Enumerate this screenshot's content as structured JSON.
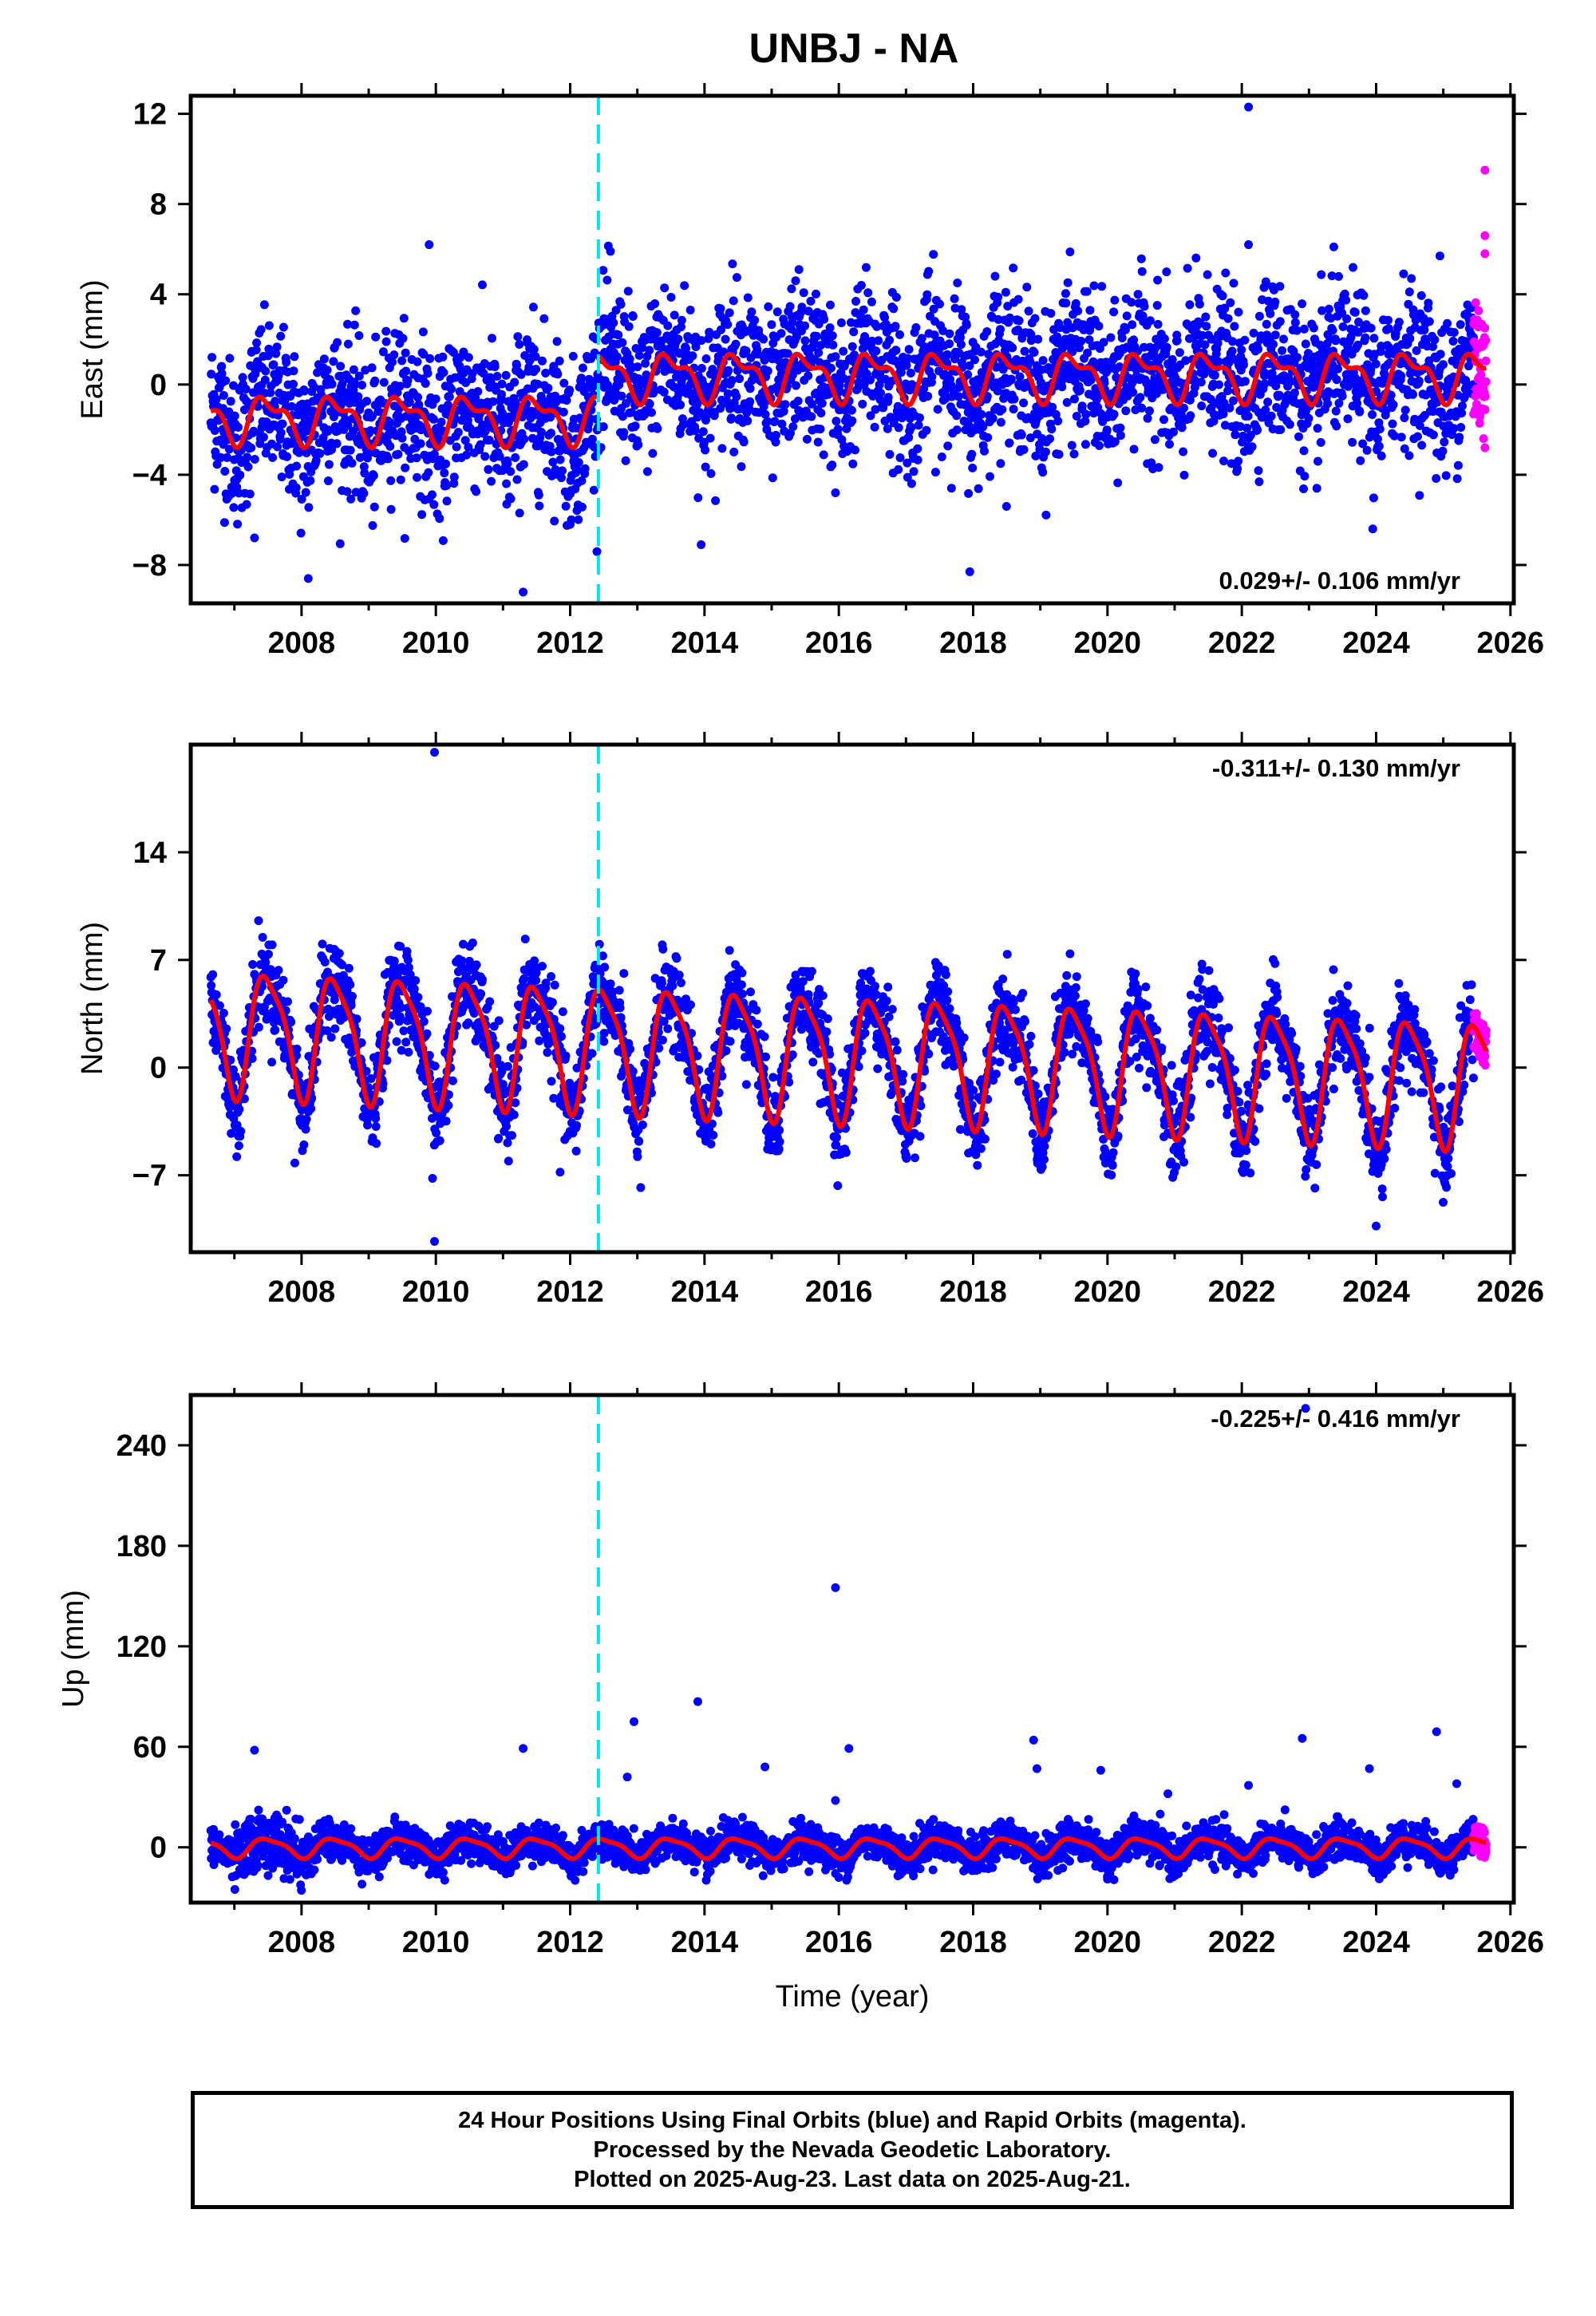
{
  "colors": {
    "final_orbits": "#0000ff",
    "rapid_orbits": "#ff00ff",
    "model_fit": "#ff0000",
    "equipment_change_line": "#00e5ee",
    "frame": "#000000"
  },
  "footer": {
    "line1": "24 Hour Positions Using Final Orbits (blue) and Rapid Orbits (magenta).",
    "line2": "Processed by the Nevada Geodetic Laboratory.",
    "line3": "Plotted on 2025-Aug-23. Last data on 2025-Aug-21."
  },
  "chart_data": [
    {
      "type": "scatter",
      "title": "UNBJ - NA",
      "ylabel": "East (mm)",
      "xlabel": "",
      "xlim": [
        2006.35,
        2026.05
      ],
      "ylim": [
        -9.7,
        12.8
      ],
      "xticks": [
        2008,
        2010,
        2012,
        2014,
        2016,
        2018,
        2020,
        2022,
        2024,
        2026
      ],
      "yticks": [
        -8,
        -4,
        0,
        4,
        8,
        12
      ],
      "rate_text": "0.029+/- 0.106 mm/yr",
      "rate_position": "bottom-right",
      "discontinuity_x": 2012.42,
      "grid": false,
      "series": [
        {
          "role": "final_orbits",
          "x_range": [
            2006.65,
            2025.45
          ],
          "scatter_spread_mm": 1.7
        },
        {
          "role": "rapid_orbits",
          "x_range": [
            2025.45,
            2025.64
          ],
          "scatter_spread_mm": 2.6
        },
        {
          "role": "model_fit",
          "offset_before": -1.5,
          "offset_after": 0.4,
          "annual_amplitude": 0.9,
          "semiannual_amplitude": 0.45
        }
      ],
      "outliers": [
        [
          2022.1,
          12.3
        ],
        [
          2022.1,
          6.2
        ],
        [
          2009.9,
          6.2
        ],
        [
          2012.6,
          5.9
        ],
        [
          2013.95,
          -7.1
        ],
        [
          2011.3,
          -9.2
        ],
        [
          2007.3,
          -6.8
        ],
        [
          2008.1,
          -8.6
        ],
        [
          2017.95,
          -8.3
        ],
        [
          2023.95,
          -6.4
        ],
        [
          2024.95,
          5.7
        ],
        [
          2015.95,
          -4.8
        ],
        [
          2012.0,
          -6.2
        ],
        [
          2025.62,
          9.5
        ],
        [
          2025.62,
          6.6
        ],
        [
          2025.62,
          5.8
        ],
        [
          2025.6,
          -2.4
        ],
        [
          2025.62,
          -2.8
        ]
      ]
    },
    {
      "type": "scatter",
      "ylabel": "North (mm)",
      "xlabel": "",
      "xlim": [
        2006.35,
        2026.05
      ],
      "ylim": [
        -12,
        21
      ],
      "xticks": [
        2008,
        2010,
        2012,
        2014,
        2016,
        2018,
        2020,
        2022,
        2024,
        2026
      ],
      "yticks": [
        -7,
        0,
        7,
        14
      ],
      "rate_text": "-0.311+/- 0.130 mm/yr",
      "rate_position": "top-right",
      "discontinuity_x": 2012.42,
      "grid": false,
      "series": [
        {
          "role": "final_orbits",
          "x_range": [
            2006.65,
            2025.45
          ],
          "scatter_spread_mm": 1.4
        },
        {
          "role": "rapid_orbits",
          "x_range": [
            2025.45,
            2025.64
          ],
          "scatter_spread_mm": 1.4
        },
        {
          "role": "model_fit",
          "offset_start": 2.5,
          "offset_end": -0.9,
          "annual_amplitude": 3.9,
          "semiannual_amplitude": 0.9
        }
      ],
      "outliers": [
        [
          2009.98,
          20.5
        ],
        [
          2009.98,
          -11.3
        ],
        [
          2009.95,
          -7.2
        ],
        [
          2024.0,
          -10.3
        ],
        [
          2013.05,
          -7.8
        ],
        [
          2011.85,
          -6.8
        ],
        [
          2007.9,
          -6.2
        ]
      ]
    },
    {
      "type": "scatter",
      "ylabel": "Up (mm)",
      "xlabel": "Time (year)",
      "xlim": [
        2006.35,
        2026.05
      ],
      "ylim": [
        -33,
        270
      ],
      "xticks": [
        2008,
        2010,
        2012,
        2014,
        2016,
        2018,
        2020,
        2022,
        2024,
        2026
      ],
      "yticks": [
        0,
        60,
        120,
        180,
        240
      ],
      "rate_text": "-0.225+/- 0.416 mm/yr",
      "rate_position": "top-right",
      "discontinuity_x": 2012.42,
      "grid": false,
      "series": [
        {
          "role": "final_orbits",
          "x_range": [
            2006.65,
            2025.45
          ],
          "scatter_spread_mm": 5.5
        },
        {
          "role": "rapid_orbits",
          "x_range": [
            2025.45,
            2025.64
          ],
          "scatter_spread_mm": 9
        },
        {
          "role": "model_fit",
          "offset_start": 0,
          "offset_end": 0,
          "annual_amplitude": 5.5,
          "semiannual_amplitude": 1.5
        }
      ],
      "outliers": [
        [
          2007.3,
          58
        ],
        [
          2011.3,
          59
        ],
        [
          2012.95,
          75
        ],
        [
          2012.85,
          42
        ],
        [
          2013.9,
          87
        ],
        [
          2014.9,
          48
        ],
        [
          2015.95,
          155
        ],
        [
          2016.15,
          59
        ],
        [
          2015.95,
          28
        ],
        [
          2018.9,
          64
        ],
        [
          2018.95,
          47
        ],
        [
          2019.9,
          46
        ],
        [
          2020.9,
          32
        ],
        [
          2022.1,
          37
        ],
        [
          2022.9,
          65
        ],
        [
          2023.9,
          47
        ],
        [
          2024.9,
          69
        ],
        [
          2025.2,
          38
        ],
        [
          2022.95,
          262
        ],
        [
          2008.9,
          -22
        ],
        [
          2016.0,
          -18
        ],
        [
          2020.0,
          -19
        ]
      ]
    }
  ]
}
